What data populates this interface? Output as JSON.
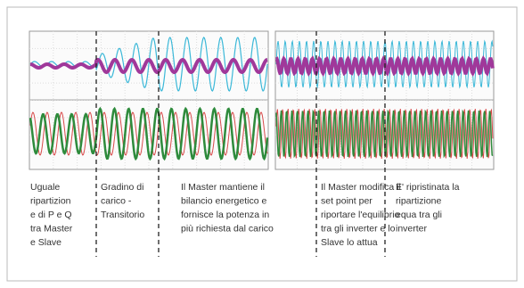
{
  "annotations": [
    {
      "lines": [
        "Uguale",
        "ripartizion",
        "e di P e Q",
        "tra Master",
        "e Slave"
      ]
    },
    {
      "lines": [
        "Gradino di",
        "carico -",
        "Transitorio"
      ]
    },
    {
      "lines": [
        "Il Master mantiene il",
        "bilancio energetico e",
        "fornisce la potenza in",
        "più richiesta dal carico"
      ]
    },
    {
      "lines": [
        "Il Master modifica il",
        "set point per",
        "riportare l'equilibrio",
        "tra gli inverter e lo",
        "Slave lo attua"
      ]
    },
    {
      "lines": [
        "E' ripristinata la",
        "ripartizione",
        "equa tra gli",
        "inverter"
      ]
    }
  ]
}
